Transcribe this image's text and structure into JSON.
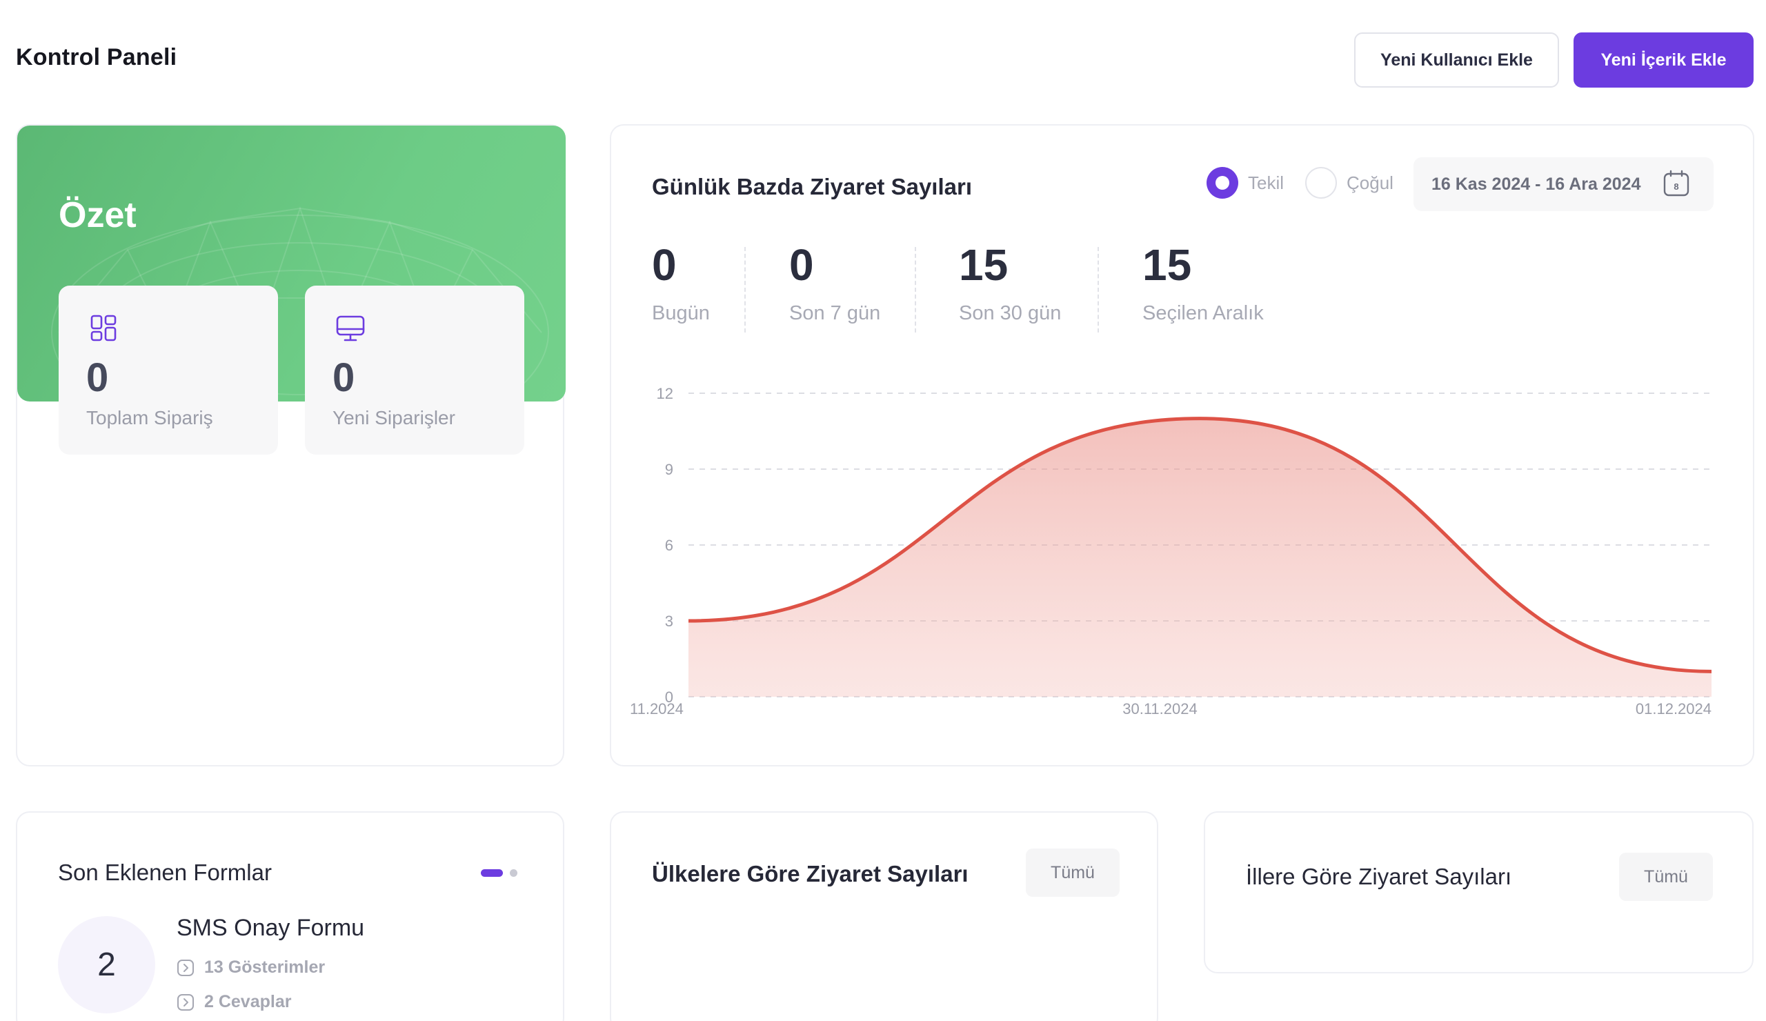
{
  "header": {
    "title": "Kontrol Paneli",
    "add_user_label": "Yeni Kullanıcı Ekle",
    "add_content_label": "Yeni İçerik Ekle"
  },
  "summary": {
    "title": "Özet",
    "tiles": [
      {
        "value": "0",
        "label": "Toplam Sipariş",
        "icon": "grid-icon"
      },
      {
        "value": "0",
        "label": "Yeni Siparişler",
        "icon": "monitor-icon"
      }
    ]
  },
  "visits": {
    "title": "Günlük Bazda Ziyaret Sayıları",
    "radio_single": "Tekil",
    "radio_multiple": "Çoğul",
    "selected_mode": "Tekil",
    "date_range": "16 Kas 2024 - 16 Ara 2024",
    "calendar_day": "8",
    "kpis": [
      {
        "value": "0",
        "label": "Bugün"
      },
      {
        "value": "0",
        "label": "Son 7 gün"
      },
      {
        "value": "15",
        "label": "Son 30 gün"
      },
      {
        "value": "15",
        "label": "Seçilen Aralık"
      }
    ]
  },
  "chart_data": {
    "type": "area",
    "title": "",
    "xlabel": "",
    "ylabel": "",
    "ylim": [
      0,
      12
    ],
    "yticks": [
      "0",
      "3",
      "6",
      "9",
      "12"
    ],
    "xtick_labels": [
      "11.2024",
      "30.11.2024",
      "01.12.2024"
    ],
    "x": [
      "11.2024",
      "30.11.2024",
      "01.12.2024"
    ],
    "series": [
      {
        "values": [
          3,
          11,
          1
        ]
      }
    ],
    "grid": true,
    "line_color": "#de5246",
    "fill_color": "#f0a8a3"
  },
  "forms": {
    "title": "Son Eklenen Formlar",
    "item": {
      "count": "2",
      "name": "SMS Onay Formu",
      "views": "13 Gösterimler",
      "answers": "2 Cevaplar"
    }
  },
  "countries": {
    "title": "Ülkelere Göre Ziyaret Sayıları",
    "all_label": "Tümü"
  },
  "cities": {
    "title": "İllere Göre Ziyaret Sayıları",
    "all_label": "Tümü"
  },
  "colors": {
    "accent": "#6c3ce0",
    "summary_green": "#6dcc86"
  }
}
